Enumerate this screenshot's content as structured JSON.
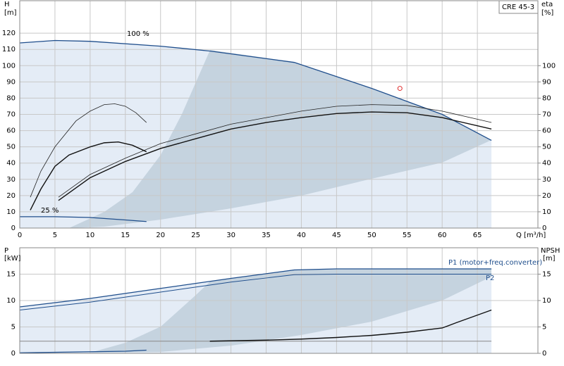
{
  "chart_data": [
    {
      "type": "line",
      "title": "CRE 45-3",
      "y_label": "H",
      "y_unit": "[m]",
      "y2_label": "eta",
      "y2_unit": "[%]",
      "x_label": "Q [m³/h]",
      "annotations": [
        "100 %",
        "25 %"
      ],
      "xlim": [
        0,
        73.6
      ],
      "xticks": [
        0,
        5,
        10,
        15,
        20,
        25,
        30,
        35,
        40,
        45,
        50,
        55,
        60,
        65
      ],
      "ylim": [
        0,
        140
      ],
      "yticks": [
        0,
        10,
        20,
        30,
        40,
        50,
        60,
        70,
        80,
        90,
        100,
        110,
        120
      ],
      "y2lim": [
        0,
        140
      ],
      "y2ticks": [
        0,
        10,
        20,
        30,
        40,
        50,
        60,
        70,
        80,
        90,
        100
      ],
      "grid": true,
      "area_color": "#e4ecf6",
      "series": [
        {
          "color": "#1f4e8c",
          "width": 1.3,
          "x": [
            0,
            5,
            10,
            20,
            27,
            39,
            50,
            60,
            67
          ],
          "values": [
            114,
            115.5,
            115,
            112,
            109,
            102,
            86,
            70,
            54
          ]
        },
        {
          "color": "#1f4e8c",
          "width": 1.3,
          "x": [
            0,
            5,
            10,
            15,
            18
          ],
          "values": [
            7,
            7,
            6.5,
            5,
            4
          ]
        },
        {
          "color": "#222222",
          "width": 0.8,
          "x": [
            1.5,
            3,
            5,
            8,
            10,
            12,
            13.5,
            15,
            16.5,
            18
          ],
          "values": [
            19,
            35,
            50,
            66,
            72,
            76,
            76.5,
            75,
            71,
            65
          ]
        },
        {
          "color": "#111111",
          "width": 1.4,
          "x": [
            1.5,
            3,
            5,
            7,
            10,
            12,
            14,
            16,
            18
          ],
          "values": [
            11,
            24,
            38,
            45,
            50,
            52.5,
            53,
            51,
            47
          ]
        },
        {
          "color": "#222222",
          "width": 0.8,
          "axis": "y2",
          "x": [
            5.5,
            10,
            15,
            20,
            25,
            30,
            35,
            40,
            45,
            50,
            55,
            60,
            67
          ],
          "values": [
            19,
            33,
            43,
            52,
            58,
            64,
            68,
            72,
            75,
            76,
            75.5,
            72,
            65
          ]
        },
        {
          "color": "#111111",
          "width": 1.4,
          "axis": "y2",
          "x": [
            5.5,
            10,
            15,
            20,
            25,
            30,
            35,
            40,
            45,
            50,
            55,
            60,
            67
          ],
          "values": [
            17,
            31,
            41,
            49,
            55,
            61,
            65,
            68,
            70.5,
            71.5,
            71,
            68,
            61
          ]
        }
      ],
      "duty_point": {
        "x": 54,
        "y": 86,
        "color": "#e03030"
      }
    },
    {
      "type": "line",
      "y_label": "P",
      "y_unit": "[kW]",
      "y2_label": "NPSH",
      "y2_unit": "[m]",
      "xlim": [
        0,
        73.6
      ],
      "ylim": [
        0,
        20
      ],
      "yticks": [
        0,
        5,
        10,
        15
      ],
      "y2lim": [
        0,
        20
      ],
      "y2ticks": [
        0,
        5,
        10,
        15
      ],
      "grid": true,
      "area_color": "#e4ecf6",
      "series": [
        {
          "name": "P1 (motor+freq.converter)",
          "color": "#1f4e8c",
          "width": 1.3,
          "x": [
            0,
            10,
            20,
            30,
            39,
            45,
            55,
            67
          ],
          "values": [
            8.8,
            10.4,
            12.3,
            14.2,
            15.8,
            16,
            16,
            16
          ]
        },
        {
          "name": "P2",
          "color": "#1f4e8c",
          "width": 0.9,
          "x": [
            0,
            10,
            20,
            30,
            39,
            45,
            55,
            67
          ],
          "values": [
            8.2,
            9.7,
            11.6,
            13.5,
            14.9,
            15,
            15,
            15
          ]
        },
        {
          "color": "#1f4e8c",
          "width": 1.3,
          "x": [
            0,
            5,
            10,
            15,
            18
          ],
          "values": [
            0.1,
            0.2,
            0.3,
            0.4,
            0.6
          ]
        },
        {
          "color": "#888888",
          "width": 1,
          "axis": "y2",
          "x": [
            0,
            67
          ],
          "values": [
            2.3,
            2.3
          ]
        },
        {
          "color": "#111111",
          "width": 1.4,
          "axis": "y2",
          "x": [
            27,
            35,
            40,
            45,
            50,
            55,
            60,
            62,
            67
          ],
          "values": [
            2.3,
            2.5,
            2.7,
            3.0,
            3.4,
            4.0,
            4.8,
            5.8,
            8.2
          ]
        }
      ]
    }
  ]
}
